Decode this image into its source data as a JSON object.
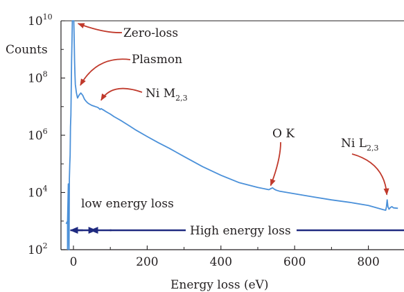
{
  "chart_data": {
    "type": "line",
    "title": "",
    "xlabel": "Energy loss (eV)",
    "ylabel": "Counts",
    "xlim": [
      -30,
      885
    ],
    "ylim_log10": [
      2,
      10
    ],
    "y_scale": "log",
    "x_ticks": [
      0,
      200,
      400,
      600,
      800
    ],
    "x_tick_labels": [
      "0",
      "200",
      "400",
      "600",
      "800"
    ],
    "y_ticks": [
      {
        "base": "10",
        "exp": "2",
        "value": 100
      },
      {
        "base": "10",
        "exp": "4",
        "value": 10000
      },
      {
        "base": "10",
        "exp": "6",
        "value": 1000000
      },
      {
        "base": "10",
        "exp": "8",
        "value": 100000000
      },
      {
        "base": "10",
        "exp": "10",
        "value": 10000000000
      }
    ],
    "grid": false,
    "colors": {
      "spectrum": "#4a90d9",
      "annotation_arrow": "#c0392b",
      "range_arrow": "#1f2a80",
      "axis": "#231f20"
    },
    "series": [
      {
        "x": [
          -20,
          -16,
          -14,
          -13,
          -12,
          -11,
          -10,
          -9,
          -8,
          -7,
          -6,
          -5,
          -4,
          -3,
          -2,
          0,
          1,
          2,
          3,
          4,
          5,
          8,
          11,
          15,
          20,
          25,
          30,
          35,
          40,
          45,
          50,
          55,
          60,
          65,
          68,
          70,
          72,
          75,
          80,
          90,
          100,
          110,
          120,
          130,
          150,
          170,
          200,
          230,
          260,
          300,
          350,
          400,
          450,
          500,
          530,
          535,
          540,
          545,
          550,
          560,
          600,
          650,
          700,
          750,
          800,
          840,
          847,
          849,
          851,
          853,
          856,
          860,
          864,
          868,
          880
        ],
        "y": [
          800,
          1000,
          20000,
          300,
          100,
          30000,
          100000,
          200000,
          2000000,
          5000000,
          40000000,
          400000000,
          2000000000,
          15000000000,
          15000000000,
          20000000000,
          15000000000,
          2000000000,
          400000000,
          150000000,
          60000000,
          30000000,
          20000000,
          25000000,
          30000000,
          25000000,
          18000000,
          15000000,
          13000000,
          12000000,
          11000000,
          10500000,
          10000000,
          9500000,
          9000000,
          8500000,
          8000000,
          8500000,
          7800000,
          6500000,
          5500000,
          4500000,
          3800000,
          3200000,
          2200000,
          1500000,
          900000,
          550000,
          350000,
          180000,
          80000,
          40000,
          22000,
          15000,
          12500,
          13500,
          14500,
          13000,
          12000,
          11000,
          9000,
          7000,
          5500,
          4500,
          3500,
          2500,
          2400,
          3200,
          5500,
          3200,
          2600,
          3000,
          3200,
          2900,
          2800
        ]
      }
    ],
    "annotations": [
      {
        "text": "Zero-loss",
        "target": {
          "x": 5,
          "y": 15000000000
        }
      },
      {
        "text": "Plasmon",
        "target": {
          "x": 15,
          "y": 50000000
        }
      },
      {
        "text": "Ni M",
        "subscript": "2,3",
        "target": {
          "x": 75,
          "y": 15000000
        }
      },
      {
        "text": "O K",
        "target": {
          "x": 535,
          "y": 14000
        }
      },
      {
        "text": "Ni L",
        "subscript": "2,3",
        "target": {
          "x": 850,
          "y": 6000
        }
      }
    ],
    "ranges": [
      {
        "text": "low energy loss",
        "x_start": -12,
        "x_end": 20
      },
      {
        "text": "High energy loss",
        "x_start": 20,
        "x_end": 885
      }
    ]
  }
}
